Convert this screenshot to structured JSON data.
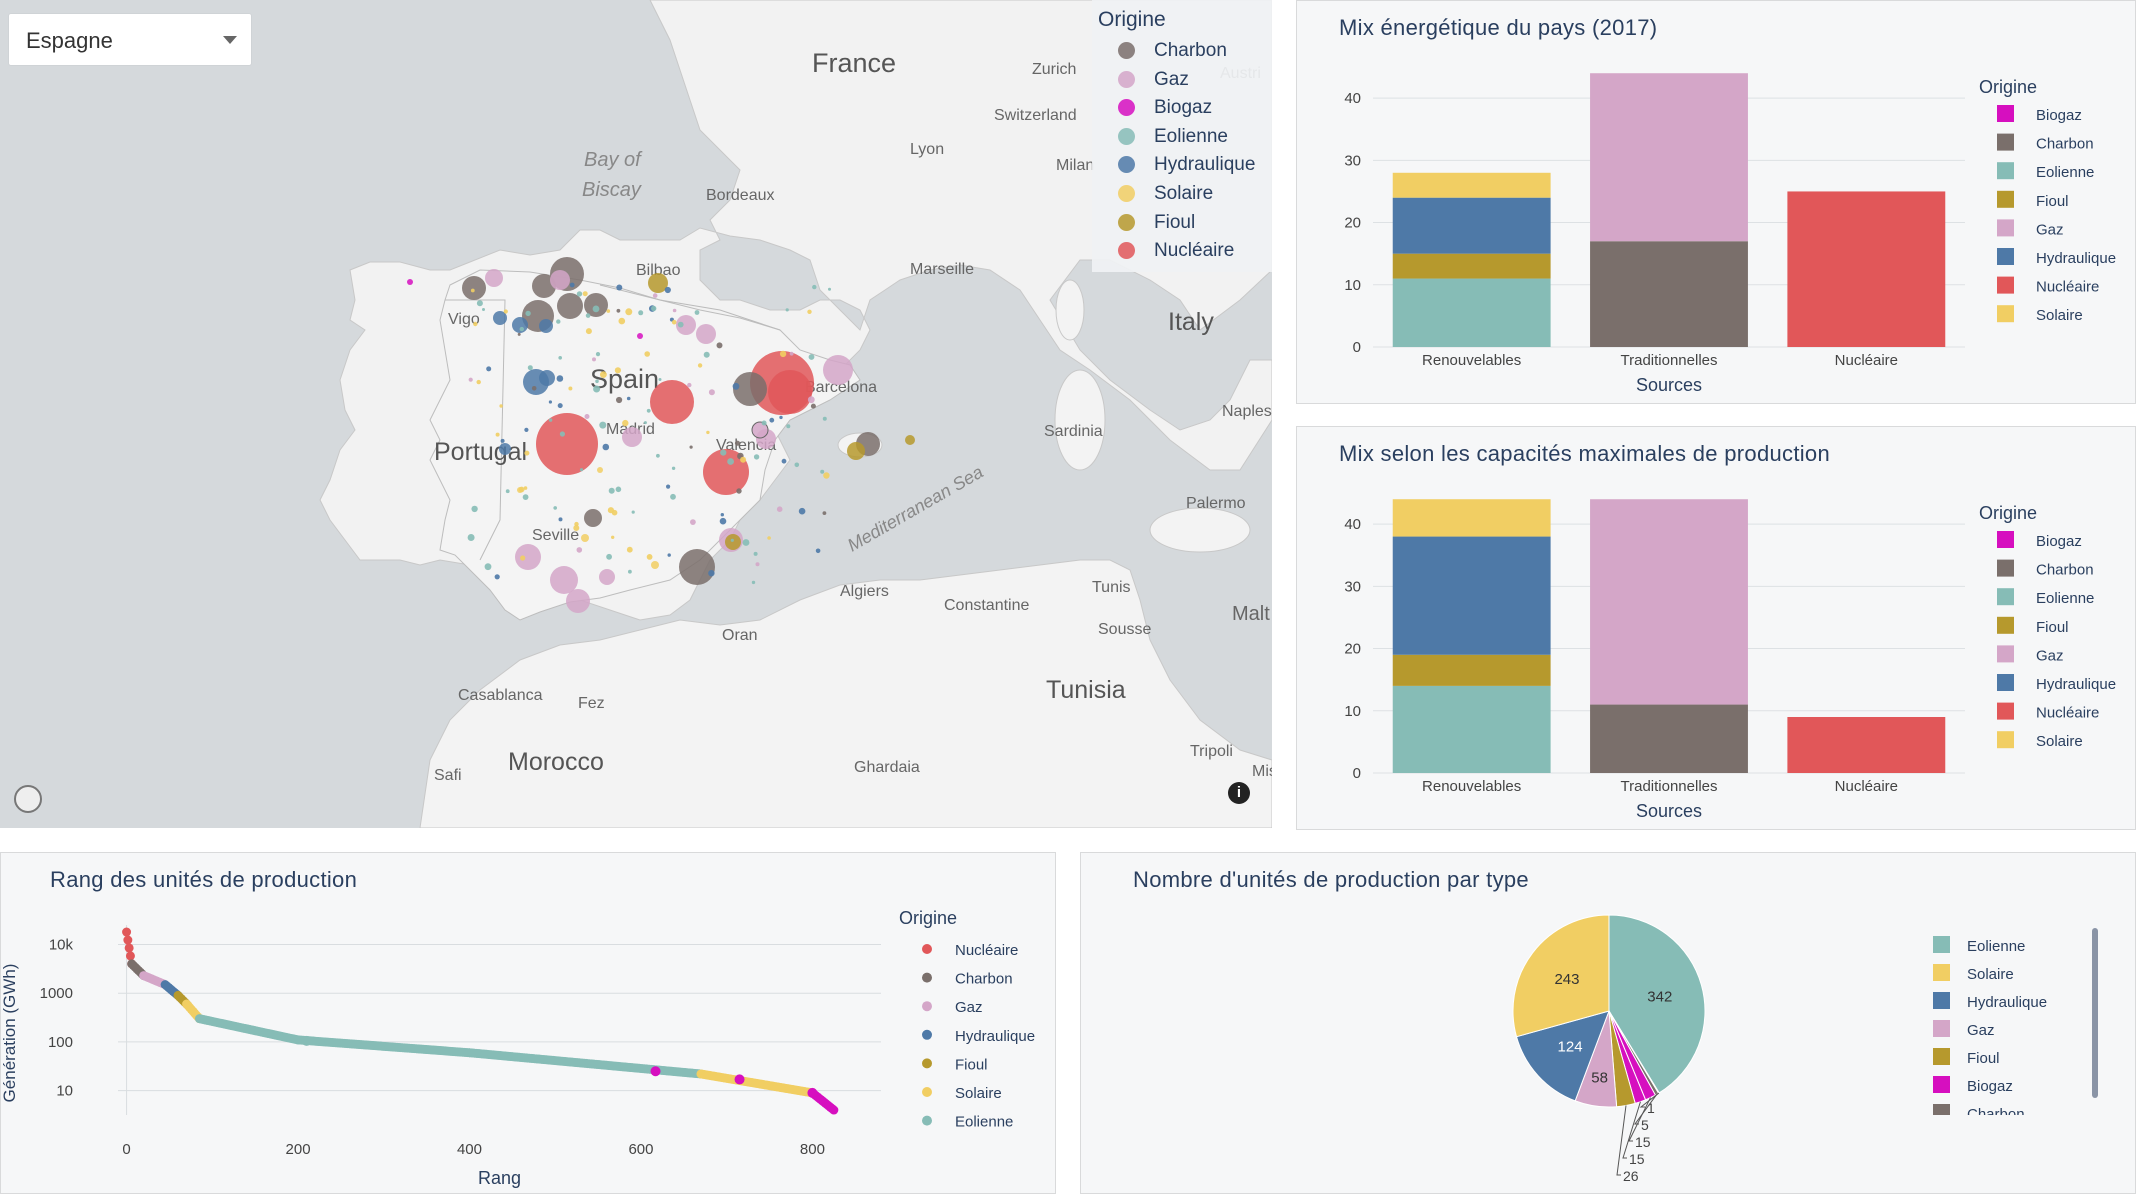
{
  "colors": {
    "Charbon": "#7a6f6b",
    "Gaz": "#d4a6c8",
    "Biogaz": "#d60fbf",
    "Eolienne": "#86bcb6",
    "Hydraulique": "#4e79a7",
    "Solaire": "#f1ce63",
    "Fioul": "#b6992d",
    "Nucléaire": "#e15759"
  },
  "dropdown": {
    "value": "Espagne"
  },
  "map": {
    "legend_title": "Origine",
    "legend": [
      "Charbon",
      "Gaz",
      "Biogaz",
      "Eolienne",
      "Hydraulique",
      "Solaire",
      "Fioul",
      "Nucléaire"
    ],
    "labels": {
      "france": "France",
      "spain": "Spain",
      "portugal": "Portugal",
      "italy": "Italy",
      "morocco": "Morocco",
      "tunisia": "Tunisia",
      "bay": "Bay of",
      "biscay": "Biscay",
      "med": "Mediterranean Sea",
      "zurich": "Zurich",
      "austria": "Austri",
      "switzerland": "Switzerland",
      "lyon": "Lyon",
      "milan": "Milan",
      "bordeaux": "Bordeaux",
      "marseille": "Marseille",
      "bilbao": "Bilbao",
      "vigo": "Vigo",
      "madrid": "Madrid",
      "barcelona": "Barcelona",
      "valencia": "Valencia",
      "seville": "Seville",
      "sardinia": "Sardinia",
      "naples": "Naples",
      "palermo": "Palermo",
      "algiers": "Algiers",
      "constantine": "Constantine",
      "tunis": "Tunis",
      "sousse": "Sousse",
      "malta": "Malt",
      "oran": "Oran",
      "casablanca": "Casablanca",
      "fez": "Fez",
      "safi": "Safi",
      "ghardaia": "Ghardaia",
      "tripoli": "Tripoli",
      "misrata": "Mis"
    }
  },
  "chart_data": [
    {
      "type": "bar",
      "title": "Mix énergétique du pays (2017)",
      "xlabel": "Sources",
      "ylabel": "",
      "categories": [
        "Renouvelables",
        "Traditionnelles",
        "Nucléaire"
      ],
      "ylim": [
        0,
        45
      ],
      "yticks": [
        0,
        10,
        20,
        30,
        40
      ],
      "stacked": true,
      "legend_title": "Origine",
      "legend": [
        "Biogaz",
        "Charbon",
        "Eolienne",
        "Fioul",
        "Gaz",
        "Hydraulique",
        "Nucléaire",
        "Solaire"
      ],
      "series": [
        {
          "name": "Eolienne",
          "values": [
            11,
            0,
            0
          ]
        },
        {
          "name": "Fioul",
          "values": [
            4,
            0,
            0
          ]
        },
        {
          "name": "Hydraulique",
          "values": [
            9,
            0,
            0
          ]
        },
        {
          "name": "Solaire",
          "values": [
            4,
            0,
            0
          ]
        },
        {
          "name": "Charbon",
          "values": [
            0,
            17,
            0
          ]
        },
        {
          "name": "Gaz",
          "values": [
            0,
            27,
            0
          ]
        },
        {
          "name": "Nucléaire",
          "values": [
            0,
            0,
            25
          ]
        }
      ]
    },
    {
      "type": "bar",
      "title": "Mix selon les capacités maximales de production",
      "xlabel": "Sources",
      "ylabel": "",
      "categories": [
        "Renouvelables",
        "Traditionnelles",
        "Nucléaire"
      ],
      "ylim": [
        0,
        45
      ],
      "yticks": [
        0,
        10,
        20,
        30,
        40
      ],
      "stacked": true,
      "legend_title": "Origine",
      "legend": [
        "Biogaz",
        "Charbon",
        "Eolienne",
        "Fioul",
        "Gaz",
        "Hydraulique",
        "Nucléaire",
        "Solaire"
      ],
      "series": [
        {
          "name": "Eolienne",
          "values": [
            14,
            0,
            0
          ]
        },
        {
          "name": "Fioul",
          "values": [
            5,
            0,
            0
          ]
        },
        {
          "name": "Hydraulique",
          "values": [
            19,
            0,
            0
          ]
        },
        {
          "name": "Solaire",
          "values": [
            6,
            0,
            0
          ]
        },
        {
          "name": "Charbon",
          "values": [
            0,
            11,
            0
          ]
        },
        {
          "name": "Gaz",
          "values": [
            0,
            33,
            0
          ]
        },
        {
          "name": "Nucléaire",
          "values": [
            0,
            0,
            9
          ]
        }
      ]
    },
    {
      "type": "scatter",
      "title": "Rang des unités de production",
      "xlabel": "Rang",
      "ylabel": "Génération (GWh)",
      "xlim": [
        -10,
        880
      ],
      "xticks": [
        0,
        200,
        400,
        600,
        800
      ],
      "ylog": true,
      "ylim_log10": [
        0.5,
        4.4
      ],
      "yticks": [
        10,
        100,
        1000,
        10000
      ],
      "ytick_labels": [
        "10",
        "100",
        "1000",
        "10k"
      ],
      "legend_title": "Origine",
      "legend": [
        "Nucléaire",
        "Charbon",
        "Gaz",
        "Hydraulique",
        "Fioul",
        "Solaire",
        "Eolienne"
      ],
      "segments": [
        {
          "name": "Nucléaire",
          "from": 0,
          "to": 6,
          "y0": 18000,
          "y1": 4000
        },
        {
          "name": "Charbon",
          "from": 6,
          "to": 20,
          "y0": 4000,
          "y1": 2300
        },
        {
          "name": "Gaz",
          "from": 20,
          "to": 45,
          "y0": 2300,
          "y1": 1500
        },
        {
          "name": "Hydraulique",
          "from": 45,
          "to": 60,
          "y0": 1500,
          "y1": 900
        },
        {
          "name": "Fioul",
          "from": 60,
          "to": 70,
          "y0": 900,
          "y1": 600
        },
        {
          "name": "Solaire",
          "from": 70,
          "to": 85,
          "y0": 600,
          "y1": 300
        },
        {
          "name": "Eolienne",
          "from": 85,
          "to": 200,
          "y0": 300,
          "y1": 110
        },
        {
          "name": "Eolienne",
          "from": 200,
          "to": 400,
          "y0": 110,
          "y1": 60
        },
        {
          "name": "Eolienne",
          "from": 400,
          "to": 670,
          "y0": 60,
          "y1": 22
        },
        {
          "name": "Solaire",
          "from": 670,
          "to": 800,
          "y0": 22,
          "y1": 9
        },
        {
          "name": "Biogaz",
          "from": 800,
          "to": 825,
          "y0": 9,
          "y1": 4
        }
      ],
      "highlights": [
        {
          "name": "Biogaz",
          "x": 617,
          "y": 25
        },
        {
          "name": "Biogaz",
          "x": 715,
          "y": 17
        },
        {
          "name": "Eolienne",
          "x": 210,
          "y": 105
        },
        {
          "name": "Biogaz",
          "x": 800,
          "y": 9
        }
      ]
    },
    {
      "type": "pie",
      "title": "Nombre d'unités de production par type",
      "legend": [
        "Eolienne",
        "Solaire",
        "Hydraulique",
        "Gaz",
        "Fioul",
        "Biogaz",
        "Charbon"
      ],
      "slices": [
        {
          "name": "Eolienne",
          "value": 342
        },
        {
          "name": "Nucléaire",
          "value": 1
        },
        {
          "name": "Charbon",
          "value": 5
        },
        {
          "name": "Biogaz",
          "value": 15
        },
        {
          "name": "Biogaz",
          "value": 15
        },
        {
          "name": "Fioul",
          "value": 26
        },
        {
          "name": "Gaz",
          "value": 58
        },
        {
          "name": "Hydraulique",
          "value": 124
        },
        {
          "name": "Solaire",
          "value": 243
        }
      ],
      "inside_labels": [
        "342",
        "243",
        "124",
        "58"
      ],
      "outside_labels": [
        "1",
        "5",
        "15",
        "15",
        "26"
      ]
    }
  ]
}
